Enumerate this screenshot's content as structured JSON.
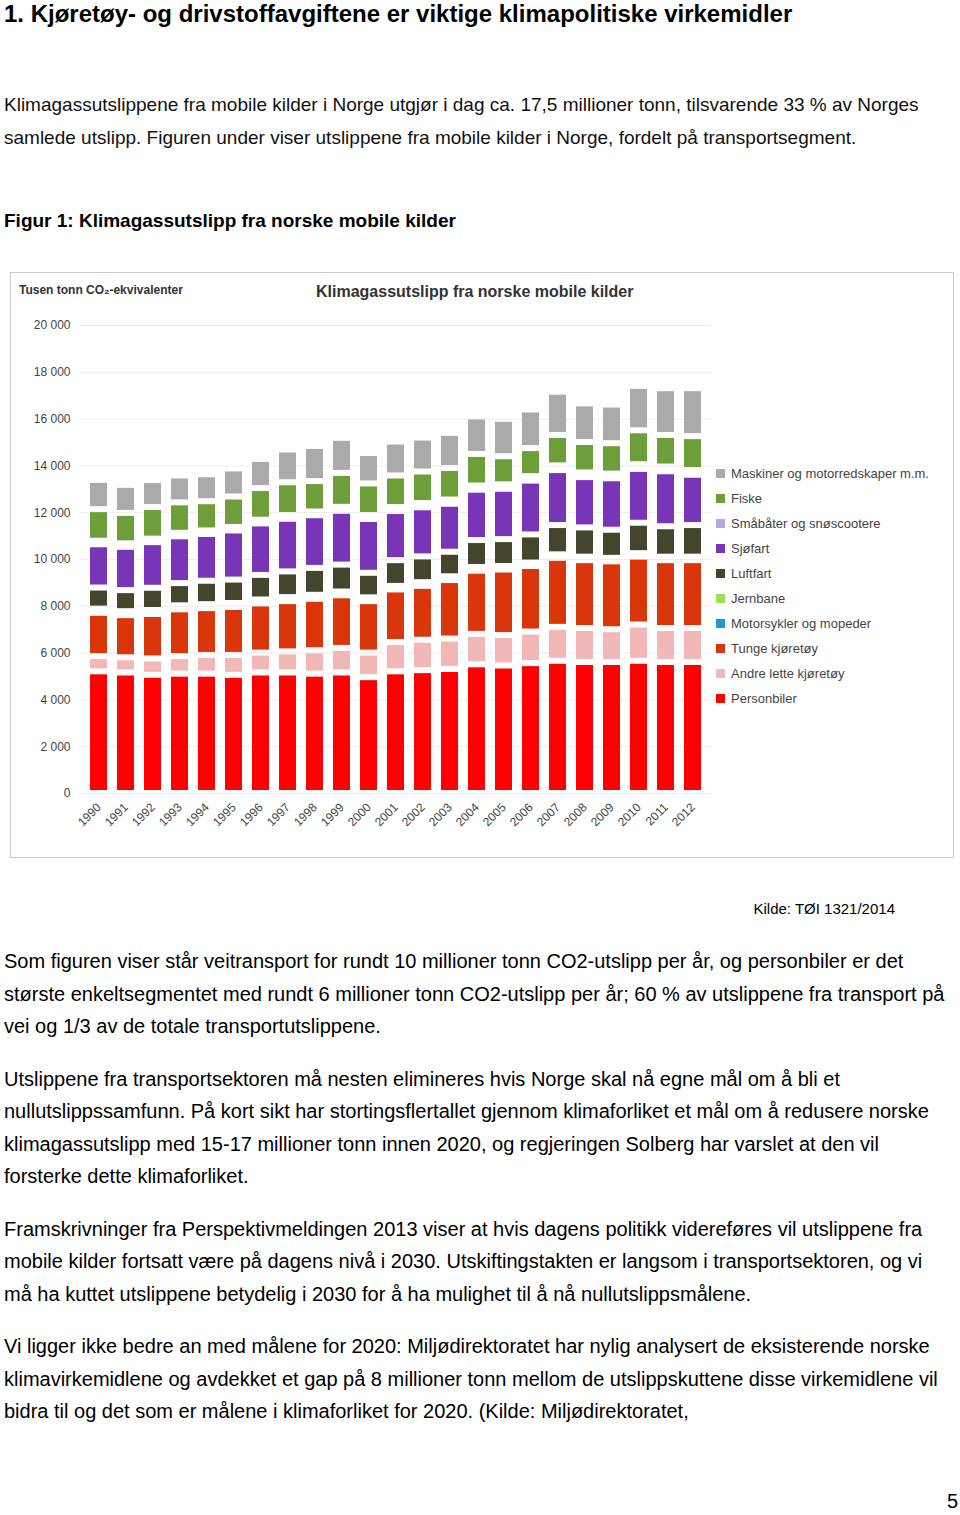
{
  "document": {
    "heading": "1.  Kjøretøy- og drivstoffavgiftene er viktige klimapolitiske virkemidler",
    "intro": "Klimagassutslippene fra mobile kilder i Norge utgjør i dag ca. 17,5 millioner tonn, tilsvarende 33 % av Norges samlede utslipp. Figuren under viser utslippene fra mobile kilder i Norge, fordelt på transportsegment.",
    "figure_caption": "Figur 1: Klimagassutslipp fra norske mobile kilder",
    "source": "Kilde: TØI 1321/2014",
    "paragraphs": [
      "Som figuren viser står veitransport for rundt 10 millioner tonn CO2-utslipp per år, og personbiler er det største enkeltsegmentet med rundt 6 millioner tonn CO2-utslipp per år; 60 % av utslippene fra transport på vei og 1/3 av de totale transportutslippene.",
      "Utslippene fra transportsektoren må nesten elimineres hvis Norge skal nå egne mål om å bli et nullutslippssamfunn. På kort sikt har stortingsflertallet gjennom klimaforliket et mål om å redusere norske klimagassutslipp med 15-17 millioner tonn innen 2020, og regjeringen Solberg har varslet at den vil forsterke dette klimaforliket.",
      "Framskrivninger fra Perspektivmeldingen 2013 viser at hvis dagens politikk videreføres vil utslippene fra mobile kilder fortsatt være på dagens nivå i 2030. Utskiftingstakten er langsom i transportsektoren, og vi må ha kuttet utslippene betydelig i 2030 for å ha mulighet til å nå nullutslippsmålene.",
      "Vi ligger ikke bedre an med målene for 2020: Miljødirektoratet har nylig analysert de eksisterende norske klimavirkemidlene og avdekket et gap på 8 millioner tonn mellom de utslippskuttene disse virkemidlene vil bidra til og det som er målene i klimaforliket for 2020. (Kilde: Miljødirektoratet,"
    ],
    "page_number": 5
  },
  "chart_data": {
    "type": "bar",
    "stacked": true,
    "title": "Klimagassutslipp fra norske mobile kilder",
    "y_label": "Tusen tonn CO₂-ekvivalenter",
    "categories": [
      1990,
      1991,
      1992,
      1993,
      1994,
      1995,
      1996,
      1997,
      1998,
      1999,
      2000,
      2001,
      2002,
      2003,
      2004,
      2005,
      2006,
      2007,
      2008,
      2009,
      2010,
      2011,
      2012
    ],
    "ylim": [
      0,
      20000
    ],
    "yticks": [
      0,
      {
        "value": 2000,
        "label": "2 000"
      },
      {
        "value": 4000,
        "label": "4 000"
      },
      {
        "value": 6000,
        "label": "6 000"
      },
      {
        "value": 8000,
        "label": "8 000"
      },
      {
        "value": 10000,
        "label": "10 000"
      },
      {
        "value": 12000,
        "label": "12 000"
      },
      {
        "value": 14000,
        "label": "14 000"
      },
      {
        "value": 16000,
        "label": "16 000"
      },
      {
        "value": 18000,
        "label": "18 000"
      },
      {
        "value": 20000,
        "label": "20 000"
      }
    ],
    "grid": true,
    "legend": "right",
    "series": [
      {
        "name": "Personbiler",
        "color": "#ff0000",
        "values": [
          5200,
          5150,
          5050,
          5100,
          5100,
          5050,
          5150,
          5150,
          5100,
          5150,
          4950,
          5200,
          5250,
          5300,
          5500,
          5450,
          5550,
          5650,
          5600,
          5600,
          5650,
          5600,
          5600
        ]
      },
      {
        "name": "Andre lette kjøretøy",
        "color": "#f2b8b8",
        "values": [
          650,
          650,
          700,
          750,
          800,
          850,
          850,
          900,
          1000,
          1050,
          1050,
          1250,
          1300,
          1300,
          1300,
          1300,
          1350,
          1450,
          1450,
          1400,
          1550,
          1450,
          1450
        ]
      },
      {
        "name": "Tunge kjøretøy",
        "color": "#d9360b",
        "values": [
          1850,
          1800,
          1900,
          2000,
          2000,
          2050,
          2100,
          2150,
          2200,
          2250,
          2200,
          2250,
          2300,
          2500,
          2700,
          2800,
          2800,
          2950,
          2900,
          2900,
          2900,
          2900,
          2900
        ]
      },
      {
        "name": "Motorsykler og mopeder",
        "color": "#1e96d8",
        "values": [
          70,
          70,
          70,
          70,
          70,
          70,
          70,
          70,
          70,
          70,
          70,
          70,
          80,
          80,
          80,
          80,
          80,
          80,
          80,
          80,
          80,
          80,
          80
        ]
      },
      {
        "name": "Jernbane",
        "color": "#9be05a",
        "values": [
          110,
          100,
          100,
          100,
          100,
          100,
          100,
          100,
          100,
          90,
          90,
          80,
          80,
          80,
          80,
          70,
          70,
          70,
          70,
          70,
          70,
          70,
          70
        ]
      },
      {
        "name": "Luftfart",
        "color": "#45452e",
        "values": [
          900,
          900,
          950,
          950,
          1000,
          1000,
          1050,
          1100,
          1150,
          1150,
          1050,
          1100,
          1100,
          1050,
          1150,
          1150,
          1200,
          1250,
          1250,
          1200,
          1300,
          1300,
          1350
        ]
      },
      {
        "name": "Sjøfart",
        "color": "#7935b8",
        "values": [
          1850,
          1850,
          1950,
          2000,
          2000,
          2100,
          2200,
          2250,
          2250,
          2300,
          2300,
          2100,
          2100,
          2050,
          2150,
          2150,
          2300,
          2350,
          2150,
          2200,
          2300,
          2350,
          2150
        ]
      },
      {
        "name": "Småbåter og snøscootere",
        "color": "#b8a6e0",
        "values": [
          150,
          150,
          150,
          150,
          150,
          150,
          160,
          160,
          160,
          170,
          170,
          170,
          180,
          180,
          180,
          190,
          190,
          200,
          200,
          200,
          200,
          200,
          200
        ]
      },
      {
        "name": "Fiske",
        "color": "#6e9e3a",
        "values": [
          1350,
          1300,
          1350,
          1300,
          1250,
          1300,
          1350,
          1400,
          1300,
          1450,
          1350,
          1350,
          1350,
          1350,
          1350,
          1200,
          1200,
          1300,
          1300,
          1300,
          1450,
          1350,
          1450
        ]
      },
      {
        "name": "Maskiner og motorredskaper m.m.",
        "color": "#aaaaaa",
        "values": [
          1250,
          1200,
          1150,
          1150,
          1150,
          1200,
          1250,
          1400,
          1500,
          1500,
          1300,
          1450,
          1450,
          1500,
          1600,
          1600,
          1650,
          1850,
          1650,
          1650,
          1900,
          2000,
          2050
        ]
      }
    ]
  }
}
